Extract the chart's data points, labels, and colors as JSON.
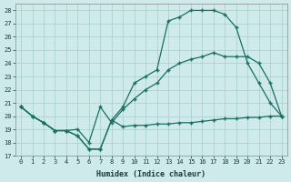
{
  "xlabel": "Humidex (Indice chaleur)",
  "ylabel": "",
  "bg_color": "#ceeaea",
  "grid_color": "#aacccc",
  "line_color": "#1a6e62",
  "xlim": [
    -0.5,
    23.5
  ],
  "ylim": [
    17,
    28.5
  ],
  "xticks": [
    0,
    1,
    2,
    3,
    4,
    5,
    6,
    7,
    8,
    9,
    10,
    11,
    12,
    13,
    14,
    15,
    16,
    17,
    18,
    19,
    20,
    21,
    22,
    23
  ],
  "yticks": [
    17,
    18,
    19,
    20,
    21,
    22,
    23,
    24,
    25,
    26,
    27,
    28
  ],
  "line1_x": [
    0,
    1,
    2,
    3,
    4,
    5,
    6,
    7,
    8,
    9,
    10,
    11,
    12,
    13,
    14,
    15,
    16,
    17,
    18,
    19,
    20,
    21,
    22,
    23
  ],
  "line1_y": [
    20.7,
    20.0,
    19.5,
    18.9,
    18.9,
    18.5,
    17.5,
    17.5,
    19.7,
    19.2,
    19.3,
    19.3,
    19.4,
    19.4,
    19.5,
    19.5,
    19.6,
    19.7,
    19.8,
    19.8,
    19.9,
    19.9,
    20.0,
    20.0
  ],
  "line2_x": [
    0,
    1,
    2,
    3,
    4,
    5,
    6,
    7,
    8,
    9,
    10,
    11,
    12,
    13,
    14,
    15,
    16,
    17,
    18,
    19,
    20,
    21,
    22,
    23
  ],
  "line2_y": [
    20.7,
    20.0,
    19.5,
    18.9,
    18.9,
    19.0,
    18.0,
    20.7,
    19.5,
    20.5,
    21.3,
    22.0,
    22.5,
    23.5,
    24.0,
    24.3,
    24.5,
    24.8,
    24.5,
    24.5,
    24.5,
    24.0,
    22.5,
    20.0
  ],
  "line3_x": [
    0,
    1,
    2,
    3,
    4,
    5,
    6,
    7,
    8,
    9,
    10,
    11,
    12,
    13,
    14,
    15,
    16,
    17,
    18,
    19,
    20,
    21,
    22,
    23
  ],
  "line3_y": [
    20.7,
    20.0,
    19.5,
    18.9,
    18.9,
    18.5,
    17.5,
    17.5,
    19.7,
    20.7,
    22.5,
    23.0,
    23.5,
    27.2,
    27.5,
    28.0,
    28.0,
    28.0,
    27.7,
    26.7,
    24.0,
    22.5,
    21.0,
    20.0
  ]
}
